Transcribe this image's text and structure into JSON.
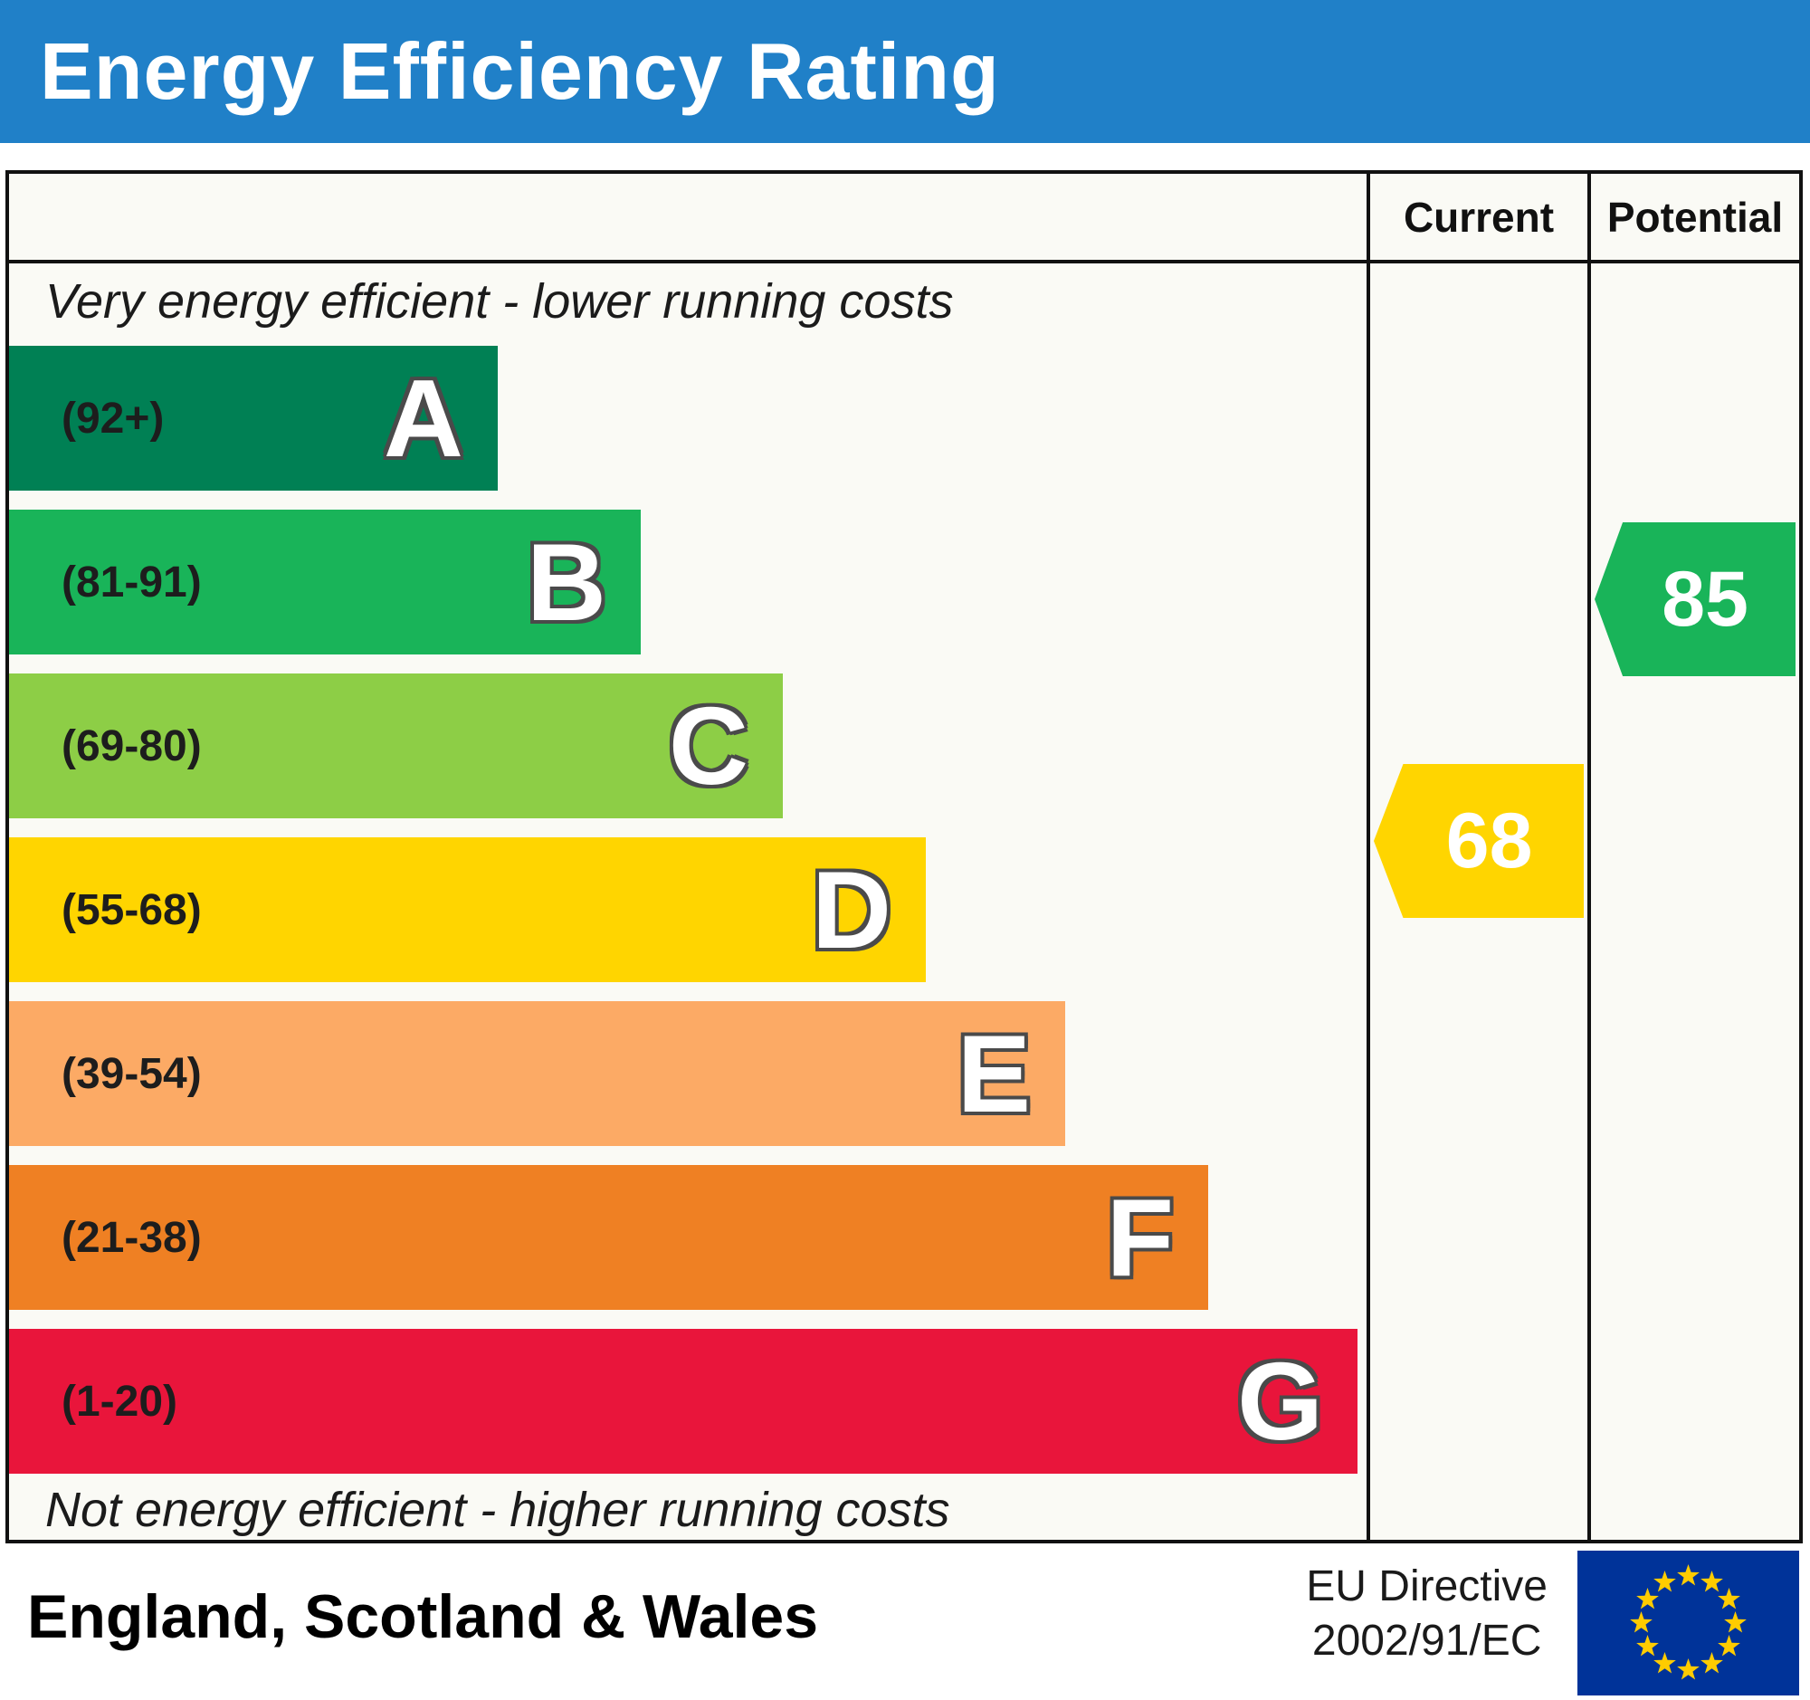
{
  "title": "Energy Efficiency Rating",
  "colors": {
    "header_bg": "#2080c8",
    "border": "#111111"
  },
  "header": {
    "current_label": "Current",
    "potential_label": "Potential"
  },
  "top_note": "Very energy efficient - lower running costs",
  "bottom_note": "Not energy efficient - higher running costs",
  "footer": {
    "region": "England, Scotland & Wales",
    "directive_line1": "EU Directive",
    "directive_line2": "2002/91/EC",
    "eu_flag_colors": {
      "background": "#003399",
      "stars": "#ffcc00"
    }
  },
  "chart_data": {
    "type": "bar",
    "title": "Energy Efficiency Rating",
    "bands": [
      {
        "letter": "A",
        "range": "(92+)",
        "min": 92,
        "max": 100,
        "color": "#008054",
        "width_pct": 36.0
      },
      {
        "letter": "B",
        "range": "(81-91)",
        "min": 81,
        "max": 91,
        "color": "#19b459",
        "width_pct": 46.5
      },
      {
        "letter": "C",
        "range": "(69-80)",
        "min": 69,
        "max": 80,
        "color": "#8dce46",
        "width_pct": 57.0
      },
      {
        "letter": "D",
        "range": "(55-68)",
        "min": 55,
        "max": 68,
        "color": "#ffd500",
        "width_pct": 67.5
      },
      {
        "letter": "E",
        "range": "(39-54)",
        "min": 39,
        "max": 54,
        "color": "#fcaa65",
        "width_pct": 77.8
      },
      {
        "letter": "F",
        "range": "(21-38)",
        "min": 21,
        "max": 38,
        "color": "#ef8023",
        "width_pct": 88.3
      },
      {
        "letter": "G",
        "range": "(1-20)",
        "min": 1,
        "max": 20,
        "color": "#e9153b",
        "width_pct": 99.3
      }
    ],
    "current": {
      "value": 68,
      "band": "D",
      "color": "#ffd500"
    },
    "potential": {
      "value": 85,
      "band": "B",
      "color": "#19b459"
    }
  }
}
